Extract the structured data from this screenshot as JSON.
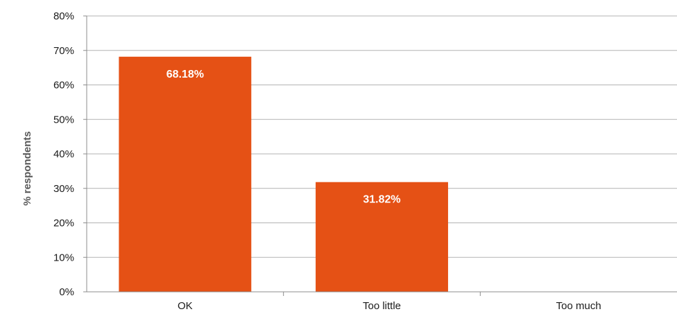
{
  "chart_data": {
    "type": "bar",
    "categories": [
      "OK",
      "Too little",
      "Too much"
    ],
    "values": [
      68.18,
      31.82,
      0
    ],
    "data_labels": [
      "68.18%",
      "31.82%",
      ""
    ],
    "title": "",
    "xlabel": "",
    "ylabel": "% respondents",
    "ylim": [
      0,
      80
    ],
    "yticks": [
      0,
      10,
      20,
      30,
      40,
      50,
      60,
      70,
      80
    ],
    "ytick_labels": [
      "0%",
      "10%",
      "20%",
      "30%",
      "40%",
      "50%",
      "60%",
      "70%",
      "80%"
    ],
    "grid": true,
    "legend": "none",
    "colors": {
      "bar": "#E55115",
      "grid": "#B3B3B3",
      "axis": "#8C8C8C",
      "data_label": "#FFFFFF"
    }
  }
}
